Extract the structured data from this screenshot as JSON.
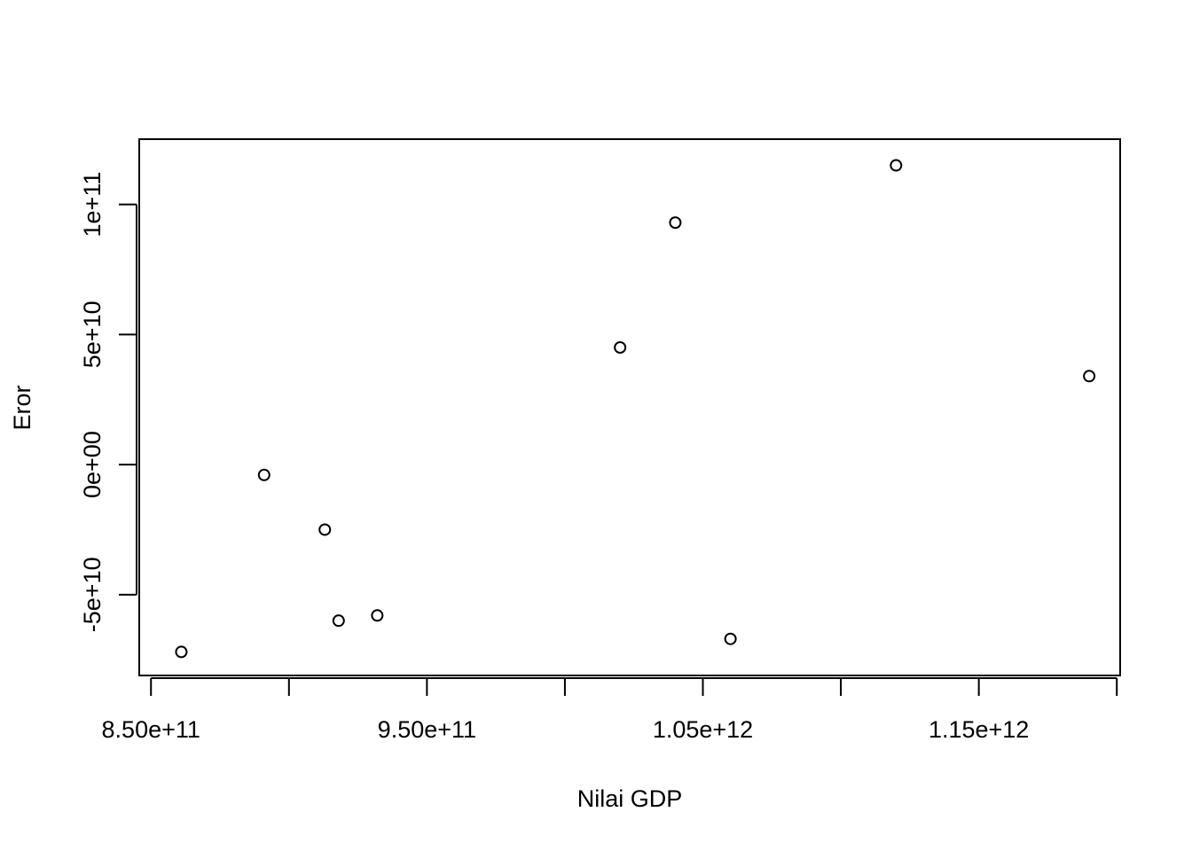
{
  "chart_data": {
    "type": "scatter",
    "title": "",
    "xlabel": "Nilai GDP",
    "ylabel": "Eror",
    "xlim": [
      848000000000,
      1198000000000
    ],
    "ylim": [
      -78000000000,
      122000000000
    ],
    "x_ticks": [
      850000000000,
      900000000000,
      950000000000,
      1000000000000,
      1050000000000,
      1100000000000,
      1150000000000,
      1200000000000
    ],
    "x_tick_labels": [
      {
        "value": 850000000000,
        "label": "8.50e+11"
      },
      {
        "value": 950000000000,
        "label": "9.50e+11"
      },
      {
        "value": 1050000000000,
        "label": "1.05e+12"
      },
      {
        "value": 1150000000000,
        "label": "1.15e+12"
      }
    ],
    "y_ticks": [
      {
        "value": -50000000000,
        "label": "-5e+10"
      },
      {
        "value": 0,
        "label": "0e+00"
      },
      {
        "value": 50000000000,
        "label": "5e+10"
      },
      {
        "value": 100000000000,
        "label": "1e+11"
      }
    ],
    "grid": false,
    "points": [
      {
        "x": 861000000000,
        "y": -72000000000
      },
      {
        "x": 891000000000,
        "y": -4000000000
      },
      {
        "x": 913000000000,
        "y": -25000000000
      },
      {
        "x": 918000000000,
        "y": -60000000000
      },
      {
        "x": 932000000000,
        "y": -58000000000
      },
      {
        "x": 1020000000000,
        "y": 45000000000
      },
      {
        "x": 1040000000000,
        "y": 93000000000
      },
      {
        "x": 1060000000000,
        "y": -67000000000
      },
      {
        "x": 1120000000000,
        "y": 115000000000
      },
      {
        "x": 1190000000000,
        "y": 34000000000
      }
    ]
  }
}
